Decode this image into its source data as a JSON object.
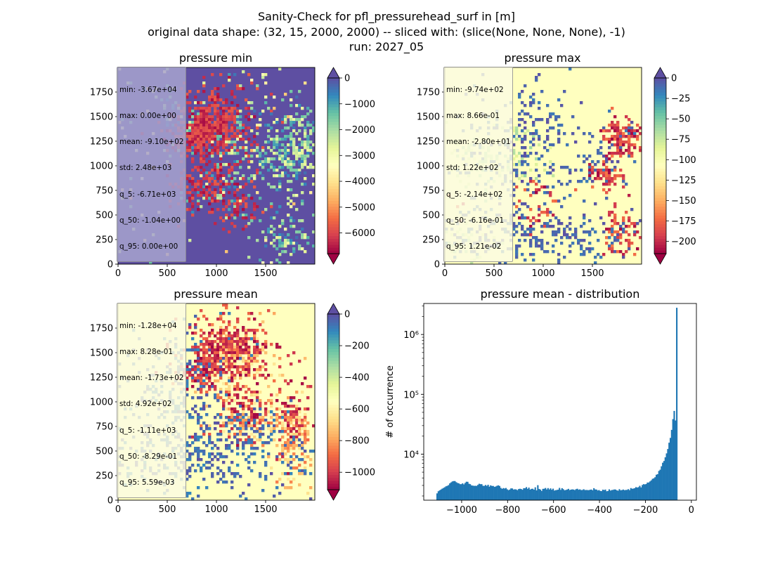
{
  "figure": {
    "suptitle_lines": [
      "Sanity-Check for pfl_pressurehead_surf in [m]",
      "original data shape: (32, 15, 2000, 2000) -- sliced with: (slice(None, None, None), -1)",
      "run: 2027_05"
    ]
  },
  "colors": {
    "histogram_bar": "#1f77b4",
    "spectral_colormap": [
      "#9e0142",
      "#d53e4f",
      "#f46d43",
      "#fdae61",
      "#fee08b",
      "#ffffbf",
      "#e6f598",
      "#abdda4",
      "#66c2a5",
      "#3288bd",
      "#5e4fa2"
    ]
  },
  "chart_data": [
    {
      "type": "heatmap",
      "title": "pressure min",
      "colormap": "Spectral",
      "x_ticks": [
        "0",
        "500",
        "1000",
        "1500"
      ],
      "y_ticks": [
        "0",
        "250",
        "500",
        "750",
        "1000",
        "1250",
        "1500",
        "1750"
      ],
      "xlim": [
        0,
        2000
      ],
      "ylim": [
        0,
        2000
      ],
      "colorbar": {
        "range": [
          -6800,
          0
        ],
        "ticks": [
          "0",
          "−1000",
          "−2000",
          "−3000",
          "−4000",
          "−5000",
          "−6000"
        ],
        "tick_values": [
          0,
          -1000,
          -2000,
          -3000,
          -4000,
          -5000,
          -6000
        ],
        "extend": "both"
      },
      "stats": [
        "min: -3.67e+04",
        "max: 0.00e+00",
        "mean: -9.10e+02",
        "std: 2.48e+03",
        "q_5: -6.71e+03",
        "q_50: -1.04e+00",
        "q_95: 0.00e+00"
      ],
      "stats_box_color": "#a7a3cf"
    },
    {
      "type": "heatmap",
      "title": "pressure max",
      "colormap": "Spectral",
      "x_ticks": [
        "0",
        "500",
        "1000",
        "1500"
      ],
      "y_ticks": [
        "0",
        "250",
        "500",
        "750",
        "1000",
        "1250",
        "1500",
        "1750"
      ],
      "xlim": [
        0,
        2000
      ],
      "ylim": [
        0,
        2000
      ],
      "colorbar": {
        "range": [
          -215,
          0
        ],
        "ticks": [
          "0",
          "−25",
          "−50",
          "−75",
          "−100",
          "−125",
          "−150",
          "−175",
          "−200"
        ],
        "tick_values": [
          0,
          -25,
          -50,
          -75,
          -100,
          -125,
          -150,
          -175,
          -200
        ],
        "extend": "both"
      },
      "stats": [
        "min: -9.74e+02",
        "max: 8.66e-01",
        "mean: -2.80e+01",
        "std: 1.22e+02",
        "q_5: -2.14e+02",
        "q_50: -6.16e-01",
        "q_95: 1.21e-02"
      ],
      "stats_box_color": "#fbfbe0"
    },
    {
      "type": "heatmap",
      "title": "pressure mean",
      "colormap": "Spectral",
      "x_ticks": [
        "0",
        "500",
        "1000",
        "1500"
      ],
      "y_ticks": [
        "0",
        "250",
        "500",
        "750",
        "1000",
        "1250",
        "1500",
        "1750"
      ],
      "xlim": [
        0,
        2000
      ],
      "ylim": [
        0,
        2000
      ],
      "colorbar": {
        "range": [
          -1110,
          0
        ],
        "ticks": [
          "0",
          "−200",
          "−400",
          "−600",
          "−800",
          "−1000"
        ],
        "tick_values": [
          0,
          -200,
          -400,
          -600,
          -800,
          -1000
        ],
        "extend": "both"
      },
      "stats": [
        "min: -1.28e+04",
        "max: 8.28e-01",
        "mean: -1.73e+02",
        "std: 4.92e+02",
        "q_5: -1.11e+03",
        "q_50: -8.29e-01",
        "q_95: 5.59e-03"
      ],
      "stats_box_color": "#fbfbe0"
    },
    {
      "type": "bar",
      "title": "pressure mean - distribution",
      "xlabel": "",
      "ylabel": "# of occurrence",
      "yscale": "log",
      "xlim": [
        -1165,
        22
      ],
      "ylim": [
        1700,
        3300000
      ],
      "x_ticks": [
        "−1000",
        "−800",
        "−600",
        "−400",
        "−200",
        "0"
      ],
      "x_tick_values": [
        -1000,
        -800,
        -600,
        -400,
        -200,
        0
      ],
      "y_ticks": [
        "10⁴",
        "10⁵",
        "10⁶"
      ],
      "y_tick_values": [
        10000,
        100000,
        1000000
      ],
      "bin_edges_start": -1110,
      "bin_width": 5.55,
      "values": [
        2210,
        2400,
        2480,
        2560,
        2650,
        2720,
        2800,
        2900,
        2950,
        3040,
        3250,
        3380,
        3500,
        3550,
        3550,
        3400,
        3300,
        3250,
        3150,
        3150,
        3250,
        3120,
        3300,
        3460,
        3450,
        3200,
        3150,
        3000,
        2980,
        2950,
        2960,
        2950,
        3060,
        3200,
        3150,
        3150,
        2960,
        2950,
        3050,
        2950,
        3080,
        2860,
        3010,
        2940,
        2940,
        2840,
        2880,
        2960,
        3010,
        2940,
        2730,
        2630,
        2710,
        2660,
        2720,
        2580,
        2500,
        2560,
        2680,
        2670,
        2560,
        2590,
        2570,
        2500,
        2610,
        2640,
        2610,
        2540,
        2700,
        2690,
        2810,
        2630,
        2760,
        2560,
        2630,
        2640,
        2550,
        2790,
        2480,
        3030,
        2620,
        2560,
        2430,
        2630,
        2640,
        2720,
        2570,
        2710,
        2570,
        2680,
        2540,
        2650,
        2460,
        2500,
        2520,
        2550,
        2730,
        2530,
        2700,
        2600,
        2490,
        2520,
        2560,
        2630,
        2510,
        2550,
        2580,
        2560,
        2510,
        2600,
        2640,
        2540,
        2580,
        2510,
        2520,
        2590,
        2510,
        2520,
        2510,
        2500,
        2540,
        2560,
        2490,
        2700,
        2570,
        2560,
        2470,
        2510,
        2430,
        2410,
        2550,
        2510,
        2560,
        2400,
        2420,
        2580,
        2460,
        2510,
        2530,
        2570,
        2560,
        2480,
        2450,
        2600,
        2490,
        2510,
        2560,
        2500,
        2520,
        2530,
        2600,
        2500,
        2710,
        2640,
        2660,
        2700,
        2810,
        2760,
        2810,
        2960,
        2780,
        3050,
        3150,
        3120,
        3170,
        3350,
        3360,
        3500,
        3650,
        3870,
        3950,
        4120,
        4530,
        4630,
        5240,
        5500,
        6270,
        7190,
        7690,
        8860,
        10300,
        12200,
        15550,
        18700,
        25450,
        38500,
        52800,
        36550,
        2800000
      ]
    }
  ]
}
